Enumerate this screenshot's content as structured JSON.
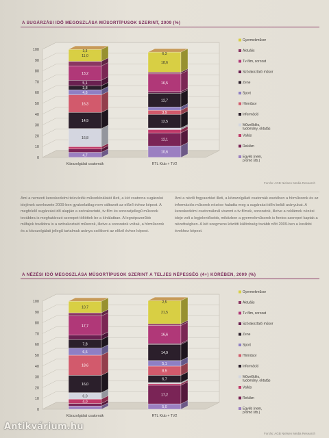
{
  "chart_data": [
    {
      "type": "bar",
      "stacked": true,
      "title": "A SUGÁRZÁSI IDŐ MEGOSZLÁSA MŰSORTÍPUSOK SZERINT, 2009 (%)",
      "categories": [
        "Közszolgálati csatornák",
        "RTL Klub + TV2"
      ],
      "ylim": [
        0,
        100
      ],
      "yticks": [
        0,
        10,
        20,
        30,
        40,
        50,
        60,
        70,
        80,
        90,
        100
      ],
      "legend": [
        "Gyermekműsor",
        "Aktuális",
        "Tv-film, sorozat",
        "Szórakoztató műsor",
        "Zene",
        "Sport",
        "Hírműsor",
        "Információ",
        "Művelődés, tudomány, oktatás",
        "Vallás",
        "Reklám",
        "Egyéb (nem, promó stb.)"
      ],
      "series": [
        {
          "name": "Egyéb (nem, promó stb.)",
          "color": "#9b7fc1",
          "values": [
            4.7,
            10.6
          ]
        },
        {
          "name": "Reklám",
          "color": "#7a2456",
          "values": [
            3.1,
            12.1
          ]
        },
        {
          "name": "Vallás",
          "color": "#c03a6a",
          "values": [
            2.1,
            3.0
          ]
        },
        {
          "name": "Művelődés, tudomány, oktatás",
          "color": "#d4d6e0",
          "values": [
            16.8,
            1.5
          ]
        },
        {
          "name": "Információ",
          "color": "#2b1f2b",
          "values": [
            14.9,
            12.5
          ]
        },
        {
          "name": "Hírműsor",
          "color": "#d25a6c",
          "values": [
            16.3,
            3.9
          ]
        },
        {
          "name": "Sport",
          "color": "#8e7fc4",
          "values": [
            4.6,
            3.0
          ]
        },
        {
          "name": "Zene",
          "color": "#2b1f2b",
          "values": [
            3.8,
            12.7
          ]
        },
        {
          "name": "Szórakoztató műsor",
          "color": "#6a2050",
          "values": [
            5.1,
            1.5
          ]
        },
        {
          "name": "Tv-film, sorozat",
          "color": "#b03878",
          "values": [
            13.2,
            16.5
          ]
        },
        {
          "name": "Aktuális",
          "color": "#8a3562",
          "values": [
            4.3,
            1.5
          ]
        },
        {
          "name": "Gyermekműsor",
          "color": "#d8cf44",
          "values": [
            11.0,
            18.6
          ]
        }
      ],
      "labels": [
        [
          "4,7",
          "3,1",
          "",
          "16,8",
          "14,9",
          "16,3",
          "4,6",
          "3,8",
          "5,1",
          "13,2",
          "",
          "11,0"
        ],
        [
          "10,6",
          "12,1",
          "",
          "",
          "12,5",
          "3,9",
          "",
          "12,7",
          "",
          "16,5",
          "",
          "18,6"
        ]
      ],
      "top_labels": [
        "3,3",
        "6,3"
      ],
      "source": "Forrás: AGB Nielsen Media Research"
    },
    {
      "type": "bar",
      "stacked": true,
      "title": "A NÉZÉSI IDŐ MEGOSZLÁSA MŰSORTÍPUSOK SZERINT A TELJES NÉPESSÉG (4+) KÖRÉBEN, 2009 (%)",
      "categories": [
        "Közszolgálati csatornák",
        "RTL Klub + TV2"
      ],
      "ylim": [
        0,
        100
      ],
      "yticks": [
        0,
        10,
        20,
        30,
        40,
        50,
        60,
        70,
        80,
        90,
        100
      ],
      "legend": [
        "Gyermekműsor",
        "Aktuális",
        "Tv-film, sorozat",
        "Szórakoztató műsor",
        "Zene",
        "Sport",
        "Hírműsor",
        "Információ",
        "Művelődés, tudomány, oktatás",
        "Vallás",
        "Reklám",
        "Egyéb (nem, promó stb.)"
      ],
      "series": [
        {
          "name": "Egyéb (nem, promó stb.)",
          "color": "#9b7fc1",
          "values": [
            2.9,
            5.0
          ]
        },
        {
          "name": "Reklám",
          "color": "#7a2456",
          "values": [
            2.5,
            17.2
          ]
        },
        {
          "name": "Vallás",
          "color": "#c03a6a",
          "values": [
            4.0,
            1.5
          ]
        },
        {
          "name": "Művelődés, tudomány, oktatás",
          "color": "#d4d6e0",
          "values": [
            6.0,
            1.0
          ]
        },
        {
          "name": "Információ",
          "color": "#2b1f2b",
          "values": [
            16.0,
            6.7
          ]
        },
        {
          "name": "Hírműsor",
          "color": "#d25a6c",
          "values": [
            18.6,
            8.5
          ]
        },
        {
          "name": "Sport",
          "color": "#8e7fc4",
          "values": [
            6.6,
            5.1
          ]
        },
        {
          "name": "Zene",
          "color": "#2b1f2b",
          "values": [
            7.8,
            14.9
          ]
        },
        {
          "name": "Szórakoztató műsor",
          "color": "#6a2050",
          "values": [
            4.1,
            1.0
          ]
        },
        {
          "name": "Tv-film, sorozat",
          "color": "#b03878",
          "values": [
            17.7,
            16.6
          ]
        },
        {
          "name": "Aktuális",
          "color": "#8a3562",
          "values": [
            3.0,
            1.5
          ]
        },
        {
          "name": "Gyermekműsor",
          "color": "#d8cf44",
          "values": [
            10.7,
            21.5
          ]
        }
      ],
      "labels": [
        [
          "2,9",
          "",
          "4,0",
          "6,0",
          "16,0",
          "18,6",
          "6,6",
          "7,8",
          "",
          "17,7",
          "",
          "10,7"
        ],
        [
          "5,0",
          "17,2",
          "",
          "",
          "6,7",
          "8,5",
          "5,1",
          "14,9",
          "",
          "16,6",
          "",
          "21,5"
        ]
      ],
      "top_labels": [
        "",
        "2,5"
      ],
      "source": "Forrás: AGB Nielsen Media Research"
    }
  ],
  "body_text": {
    "col1": "Ami a nemzeti kereskedelmi televíziók műsorkínálatát illeti, a két csatorna sugárzási idejének szerkezete 2009-ben gyakorlatilag nem változott az előző évhez képest. A megfelelő sugárzási idő alapján a szórakoztató, tv-film és sorozatjellegű műsorok továbbra is meghatározó szerepet töltöttek be a kínálatban. A legnépszerűbb műfajok továbbra is a szórakoztató műsorok, illetve a sorozatok voltak, a hírműsorok és a közszolgálati jellegű tartalmak aránya csökkent az előző évhez képest.",
    "col2": "Ami a nézői fogyasztást illeti, a közszolgálati csatornák esetében a hírműsorok és az információs műsorok nézése haladta meg a sugárzási időn belüli arányukat. A kereskedelmi csatornáknál viszont a tv-filmek, sorozatok, illetve a reklámok nézési ideje volt a legjelentősebb, miközben a gyermekműsorok is fontos szerepet kaptak a nézettségben. A két szegmens közötti különbség tovább nőtt 2009-ben a korábbi évekhez képest."
  },
  "watermark": "Antikvárium.hu"
}
